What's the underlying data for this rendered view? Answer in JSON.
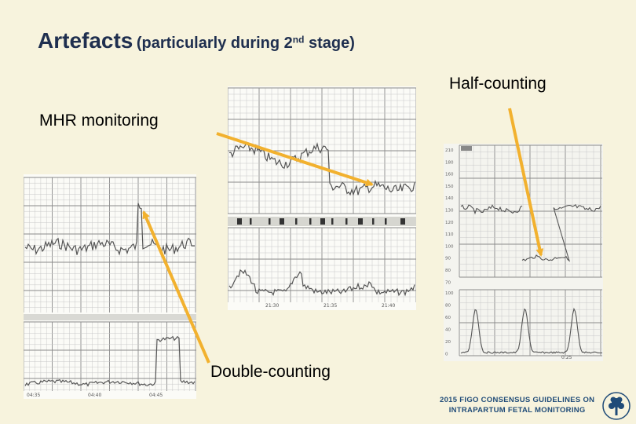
{
  "slide": {
    "title_main": "Artefacts",
    "title_paren": "(particularly during 2",
    "title_sup": "nd",
    "title_end": " stage)",
    "labels": {
      "half_counting": "Half-counting",
      "mhr_monitoring": "MHR monitoring",
      "double_counting": "Double-counting"
    },
    "footer": {
      "line1": "2015 FIGO CONSENSUS GUIDELINES ON",
      "line2": "INTRAPARTUM FETAL MONITORING"
    }
  },
  "traces": {
    "left": {
      "times": [
        "04:35",
        "04:40",
        "04:45"
      ]
    },
    "middle": {
      "times": [
        "21:30",
        "21:35",
        "21:40"
      ]
    },
    "right": {
      "fhr_axis": [
        "210",
        "180",
        "160",
        "150",
        "140",
        "130",
        "120",
        "110",
        "100",
        "90",
        "80",
        "70"
      ],
      "toco_axis": [
        "100",
        "80",
        "60",
        "40",
        "20",
        "0"
      ],
      "time": "0:25"
    }
  },
  "colors": {
    "background": "#f7f3dd",
    "title": "#1f2f4f",
    "arrow": "#f2b12e",
    "trace": "#555555",
    "footer": "#1f4b78"
  }
}
